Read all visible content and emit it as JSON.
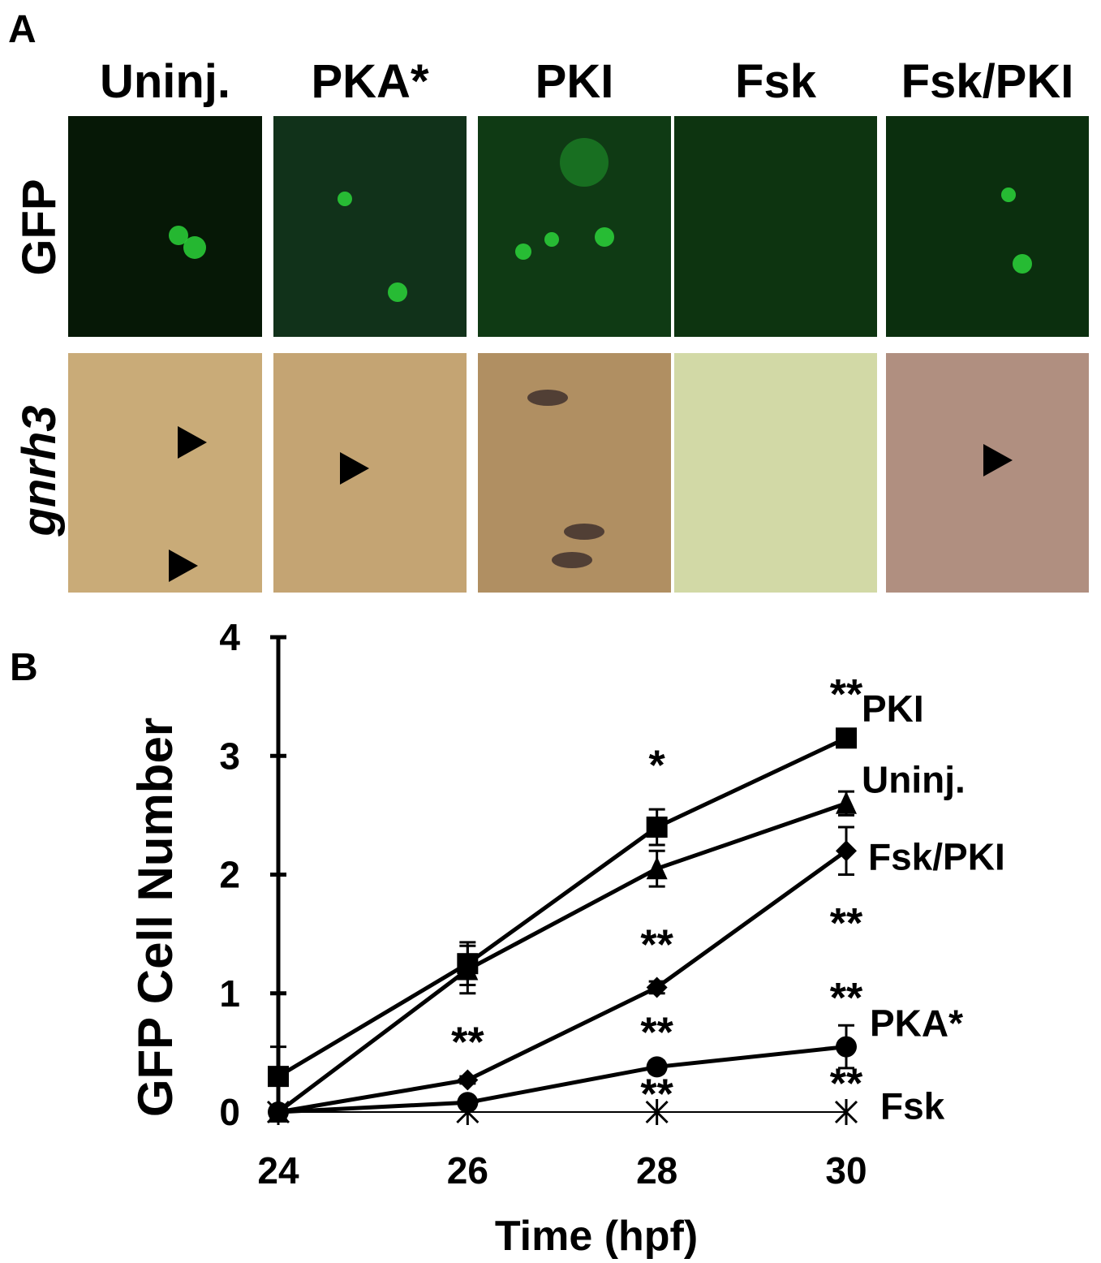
{
  "panel_a": {
    "label": "A",
    "columns": [
      "Uninj.",
      "PKA*",
      "PKI",
      "Fsk",
      "Fsk/PKI"
    ],
    "rows": [
      "GFP",
      "gnrh3"
    ]
  },
  "chart_data": {
    "type": "line",
    "panel_label": "B",
    "x_label": "Time (hpf)",
    "y_label": "GFP Cell Number",
    "x": [
      24,
      26,
      28,
      30
    ],
    "xlim": [
      24,
      30
    ],
    "xticks": [
      24,
      26,
      28,
      30
    ],
    "ylim": [
      0,
      4
    ],
    "yticks": [
      0,
      1,
      2,
      3,
      4
    ],
    "series": [
      {
        "name": "PKI",
        "color": "#000000",
        "marker": "square",
        "values": [
          0.3,
          1.25,
          2.4,
          3.15
        ],
        "errors": [
          0.25,
          0.18,
          0.15,
          0.05
        ]
      },
      {
        "name": "Uninj.",
        "color": "#000000",
        "marker": "triangle",
        "values": [
          0,
          1.2,
          2.05,
          2.6
        ],
        "errors": [
          0,
          0.2,
          0.15,
          0.1
        ]
      },
      {
        "name": "Fsk/PKI",
        "color": "#000000",
        "marker": "diamond",
        "values": [
          0,
          0.27,
          1.05,
          2.2
        ],
        "errors": [
          0,
          0.03,
          0.05,
          0.2
        ]
      },
      {
        "name": "PKA*",
        "color": "#000000",
        "marker": "circle",
        "values": [
          0,
          0.08,
          0.38,
          0.55
        ],
        "errors": [
          0,
          0.02,
          0.05,
          0.18
        ]
      },
      {
        "name": "Fsk",
        "color": "#000000",
        "marker": "x",
        "values": [
          0,
          0,
          0,
          0
        ],
        "errors": [
          0,
          0,
          0,
          0
        ]
      }
    ],
    "annotations": [
      {
        "text": "**",
        "x": 30,
        "y": 3.55
      },
      {
        "text": "*",
        "x": 28,
        "y": 2.95
      },
      {
        "text": "**",
        "x": 28,
        "y": 1.44
      },
      {
        "text": "**",
        "x": 30,
        "y": 1.62
      },
      {
        "text": "**",
        "x": 26,
        "y": 0.62
      },
      {
        "text": "**",
        "x": 28,
        "y": 0.7
      },
      {
        "text": "**",
        "x": 30,
        "y": 0.99
      },
      {
        "text": "**",
        "x": 28,
        "y": 0.18
      },
      {
        "text": "**",
        "x": 30,
        "y": 0.27
      }
    ]
  }
}
